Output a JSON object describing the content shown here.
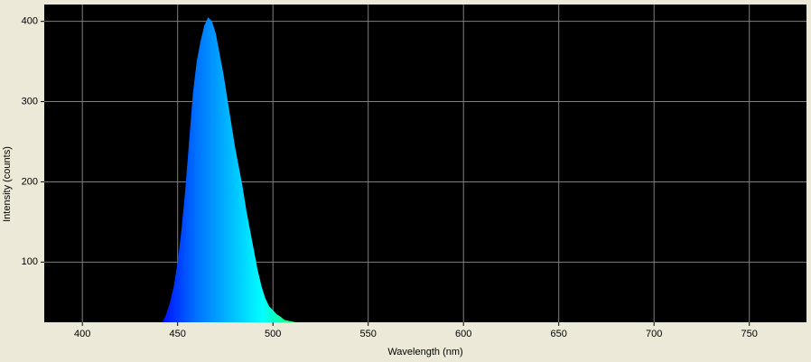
{
  "chart_data": {
    "type": "area",
    "xlabel": "Wavelength (nm)",
    "ylabel": "Intensity (counts)",
    "x": [
      442,
      444,
      446,
      448,
      450,
      452,
      454,
      456,
      458,
      460,
      462,
      464,
      466,
      468,
      470,
      472,
      474,
      476,
      478,
      480,
      482,
      484,
      486,
      488,
      490,
      492,
      494,
      496,
      498,
      500,
      502,
      504,
      506,
      508,
      510,
      512
    ],
    "series": [
      {
        "color": [
          "#0010ff",
          "#0070ff",
          "#00b8ff",
          "#00ffff",
          "#20ff60"
        ],
        "values": [
          25,
          35,
          50,
          70,
          100,
          140,
          190,
          250,
          310,
          350,
          375,
          395,
          405,
          400,
          385,
          360,
          335,
          305,
          275,
          245,
          220,
          195,
          165,
          140,
          115,
          90,
          70,
          55,
          45,
          40,
          35,
          32,
          28,
          27,
          26,
          25
        ]
      }
    ],
    "xlim": [
      380,
      780
    ],
    "xticks": [
      400,
      450,
      500,
      550,
      600,
      650,
      700,
      750
    ],
    "ylim": [
      25,
      421
    ],
    "yticks": [
      100,
      200,
      300,
      400
    ],
    "grid": true
  }
}
